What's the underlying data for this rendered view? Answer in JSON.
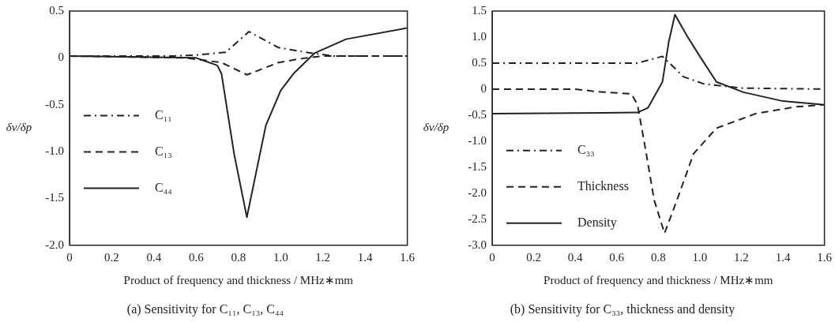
{
  "chart_data": [
    {
      "type": "line",
      "title": "(a) Sensitivity for C₁₁, C₁₃, C₄₄",
      "xlabel": "Product of frequency and thickness / MHz∗mm",
      "ylabel": "δv/δp",
      "legend": "left",
      "grid": false,
      "marker": "none",
      "xlim": [
        0,
        1.6
      ],
      "xticks": [
        0,
        0.2,
        0.4,
        0.6,
        0.8,
        {
          "value": 1,
          "label": "1.0"
        },
        1.2,
        1.4,
        1.6
      ],
      "ylim": [
        -2,
        0.5
      ],
      "yticks": [
        {
          "value": -2,
          "label": "-2.0"
        },
        -1.5,
        {
          "value": -1,
          "label": "-1.0"
        },
        -0.5,
        0,
        0.5
      ],
      "series": [
        {
          "name": "C₁₁",
          "color": "#222222",
          "line_style": "dashdot",
          "x": [
            0,
            0.49,
            0.6,
            0.74,
            0.85,
            0.99,
            1.12,
            1.25,
            1.6
          ],
          "values": [
            0.02,
            0.02,
            0.03,
            0.06,
            0.28,
            0.11,
            0.06,
            0.02,
            0.02
          ]
        },
        {
          "name": "C₁₃",
          "color": "#222222",
          "line_style": "dashed",
          "x": [
            0,
            0.55,
            0.72,
            0.84,
            0.99,
            1.09,
            1.2,
            1.6
          ],
          "values": [
            0.02,
            0.0,
            -0.05,
            -0.18,
            -0.05,
            -0.01,
            0.02,
            0.02
          ]
        },
        {
          "name": "C₄₄",
          "color": "#222222",
          "line_style": "solid",
          "x": [
            0,
            0.6,
            0.7,
            0.72,
            0.78,
            0.84,
            0.93,
            1.0,
            1.06,
            1.16,
            1.31,
            1.6
          ],
          "values": [
            0.02,
            0.0,
            -0.08,
            -0.17,
            -1.03,
            -1.7,
            -0.72,
            -0.35,
            -0.17,
            0.05,
            0.2,
            0.32
          ]
        }
      ]
    },
    {
      "type": "line",
      "title": "(b) Sensitivity for C₃₃, thickness and density",
      "xlabel": "Product of frequency and thickness / MHz∗mm",
      "ylabel": "δv/δp",
      "legend": "bottom left",
      "grid": false,
      "marker": "none",
      "xlim": [
        0,
        1.6
      ],
      "xticks": [
        0,
        0.2,
        0.4,
        0.6,
        0.8,
        {
          "value": 1,
          "label": "1.0"
        },
        1.2,
        1.4,
        1.6
      ],
      "ylim": [
        -3,
        1.5
      ],
      "yticks": [
        {
          "value": -3,
          "label": "-3.0"
        },
        -2.5,
        {
          "value": -2,
          "label": "-2.0"
        },
        -1.5,
        {
          "value": -1,
          "label": "-1.0"
        },
        -0.5,
        0,
        0.5,
        {
          "value": 1,
          "label": "1.0"
        },
        1.5
      ],
      "series": [
        {
          "name": "C₃₃",
          "color": "#222222",
          "line_style": "dashdot",
          "x": [
            0,
            0.7,
            0.82,
            0.87,
            0.92,
            1.02,
            1.2,
            1.6
          ],
          "values": [
            0.5,
            0.5,
            0.63,
            0.44,
            0.24,
            0.1,
            0.02,
            0.0
          ]
        },
        {
          "name": "Thickness",
          "color": "#222222",
          "line_style": "dashed",
          "x": [
            0,
            0.4,
            0.51,
            0.67,
            0.7,
            0.74,
            0.78,
            0.83,
            0.89,
            0.97,
            1.08,
            1.27,
            1.46,
            1.6
          ],
          "values": [
            0,
            0,
            -0.05,
            -0.09,
            -0.3,
            -1.19,
            -2.13,
            -2.77,
            -2.13,
            -1.24,
            -0.75,
            -0.47,
            -0.34,
            -0.3
          ]
        },
        {
          "name": "Density",
          "color": "#222222",
          "line_style": "solid",
          "x": [
            0,
            0.7,
            0.75,
            0.82,
            0.85,
            0.88,
            0.94,
            1.0,
            1.08,
            1.21,
            1.4,
            1.6
          ],
          "values": [
            -0.47,
            -0.45,
            -0.36,
            0.14,
            0.9,
            1.43,
            1.01,
            0.63,
            0.14,
            -0.06,
            -0.23,
            -0.3
          ]
        }
      ]
    }
  ]
}
